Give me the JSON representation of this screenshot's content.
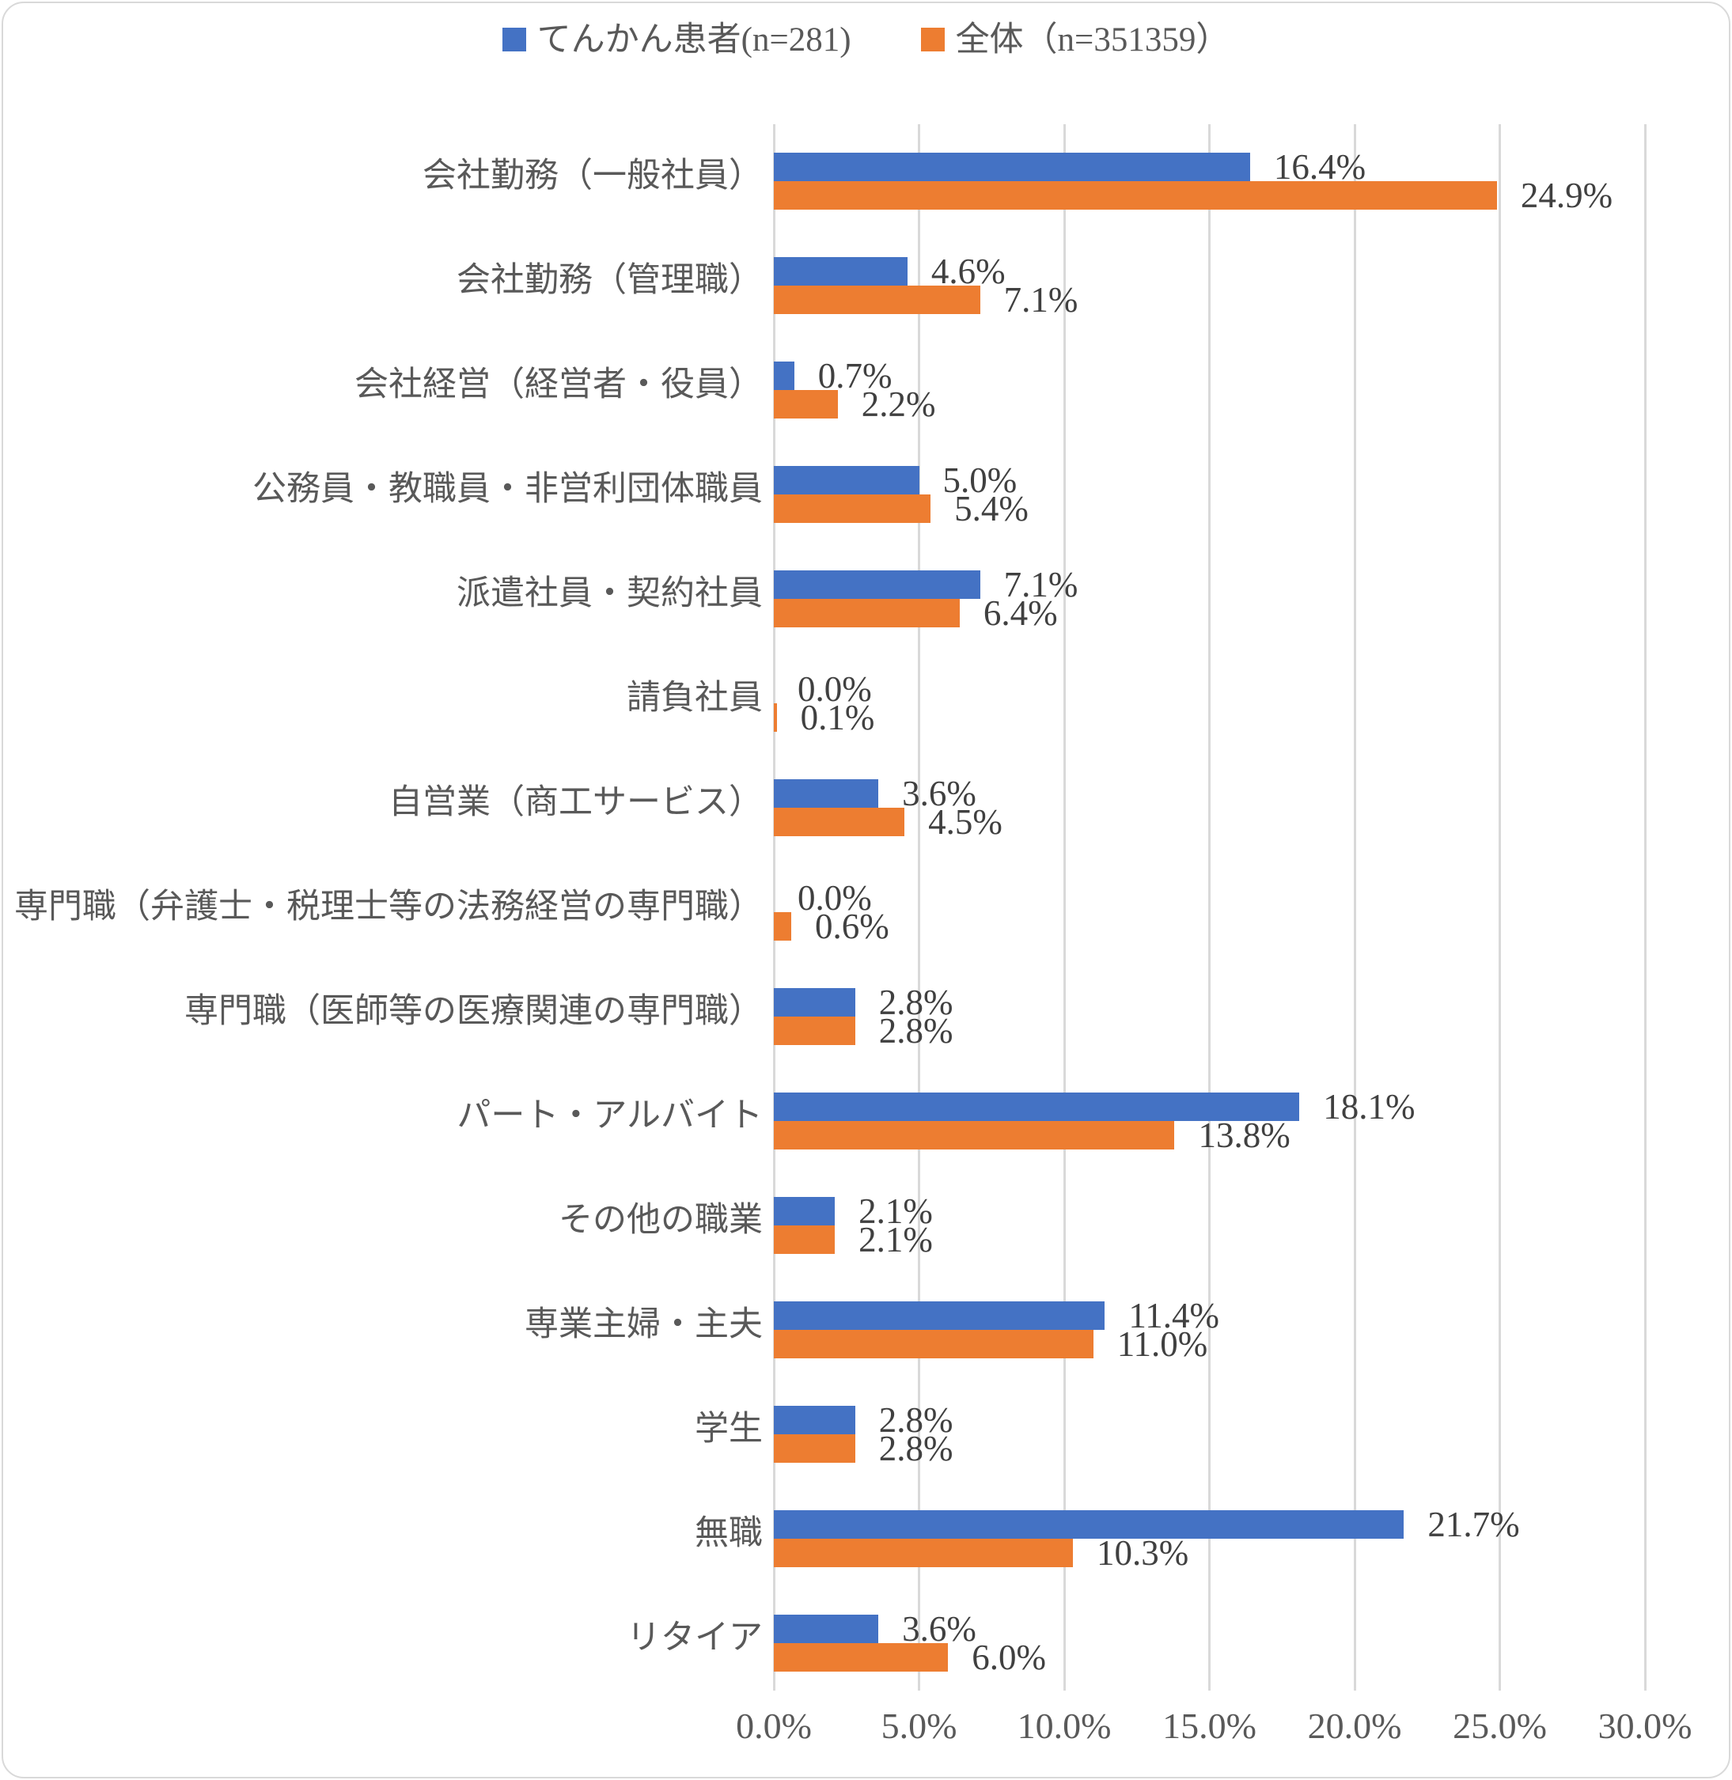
{
  "chart_data": {
    "type": "bar",
    "orientation": "horizontal",
    "title": "",
    "xlabel": "",
    "ylabel": "",
    "categories": [
      "会社勤務（一般社員）",
      "会社勤務（管理職）",
      "会社経営（経営者・役員）",
      "公務員・教職員・非営利団体職員",
      "派遣社員・契約社員",
      "請負社員",
      "自営業（商工サービス）",
      "専門職（弁護士・税理士等の法務経営の専門職）",
      "専門職（医師等の医療関連の専門職）",
      "パート・アルバイト",
      "その他の職業",
      "専業主婦・主夫",
      "学生",
      "無職",
      "リタイア"
    ],
    "series": [
      {
        "name": "てんかん患者(n=281)",
        "color": "#4472C4",
        "values": [
          16.4,
          4.6,
          0.7,
          5.0,
          7.1,
          0.0,
          3.6,
          0.0,
          2.8,
          18.1,
          2.1,
          11.4,
          2.8,
          21.7,
          3.6
        ],
        "labels": [
          "16.4%",
          "4.6%",
          "0.7%",
          "5.0%",
          "7.1%",
          "0.0%",
          "3.6%",
          "0.0%",
          "2.8%",
          "18.1%",
          "2.1%",
          "11.4%",
          "2.8%",
          "21.7%",
          "3.6%"
        ]
      },
      {
        "name": "全体（n=351359）",
        "color": "#ED7D31",
        "values": [
          24.9,
          7.1,
          2.2,
          5.4,
          6.4,
          0.1,
          4.5,
          0.6,
          2.8,
          13.8,
          2.1,
          11.0,
          2.8,
          10.3,
          6.0
        ],
        "labels": [
          "24.9%",
          "7.1%",
          "2.2%",
          "5.4%",
          "6.4%",
          "0.1%",
          "4.5%",
          "0.6%",
          "2.8%",
          "13.8%",
          "2.1%",
          "11.0%",
          "2.8%",
          "10.3%",
          "6.0%"
        ]
      }
    ],
    "x_axis": {
      "min": 0,
      "max": 30,
      "tick_interval": 5,
      "ticks": [
        "0.0%",
        "5.0%",
        "10.0%",
        "15.0%",
        "20.0%",
        "25.0%",
        "30.0%"
      ]
    },
    "grid": true,
    "legend_position": "top",
    "value_labels": "outside-end",
    "styles": {
      "grid_color": "#D9D9D9",
      "axis_text_color": "#595959",
      "value_label_color": "#404040",
      "background": "#FFFFFF",
      "border_color": "#D9D9D9"
    }
  }
}
